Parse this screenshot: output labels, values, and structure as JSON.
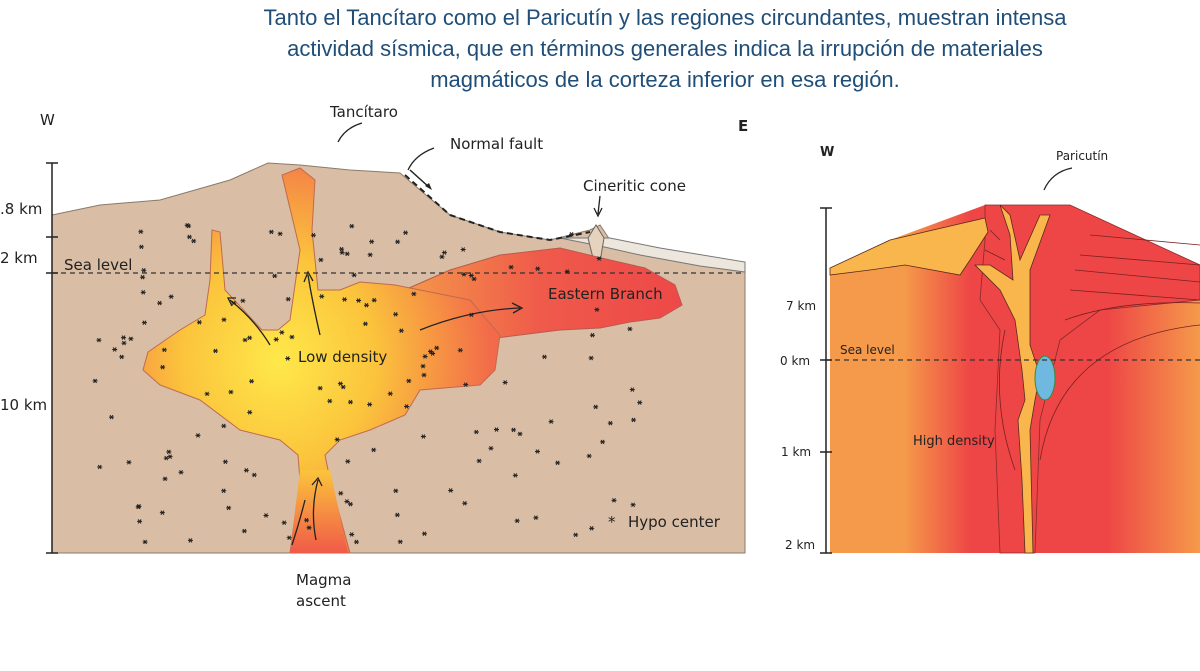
{
  "title_lines": [
    "Tanto el Tancítaro como el Paricutín y las regiones circundantes, muestran  intensa",
    "actividad sísmica, que en términos generales indica la irrupción de materiales",
    "magmáticos de la corteza inferior en esa región."
  ],
  "left_diagram": {
    "west_label": "W",
    "east_label": "E",
    "axis_labels": [
      ".8 km",
      "2 km",
      "10 km"
    ],
    "sea_level": "Sea level",
    "tancitaro": "Tancítaro",
    "normal_fault": "Normal fault",
    "cineritic_cone": "Cineritic cone",
    "eastern_branch": "Eastern Branch",
    "low_density": "Low density",
    "magma_ascent_1": "Magma",
    "magma_ascent_2": "ascent",
    "legend": "Hypo center",
    "legend_symbol": "*"
  },
  "right_diagram": {
    "west_label": "W",
    "paricutin": "Paricutín",
    "axis_labels": [
      "7 km",
      "0 km",
      "1 km",
      "2 km"
    ],
    "sea_level": "Sea level",
    "high_density": "High density"
  },
  "colors": {
    "title": "#1f4e79",
    "crust": "#d9bda4",
    "magma_core": "#ffe14a",
    "magma_edge": "#f26a4a",
    "orange": "#f59a4a",
    "red": "#ee4444",
    "conduit": "#f8b64c"
  }
}
